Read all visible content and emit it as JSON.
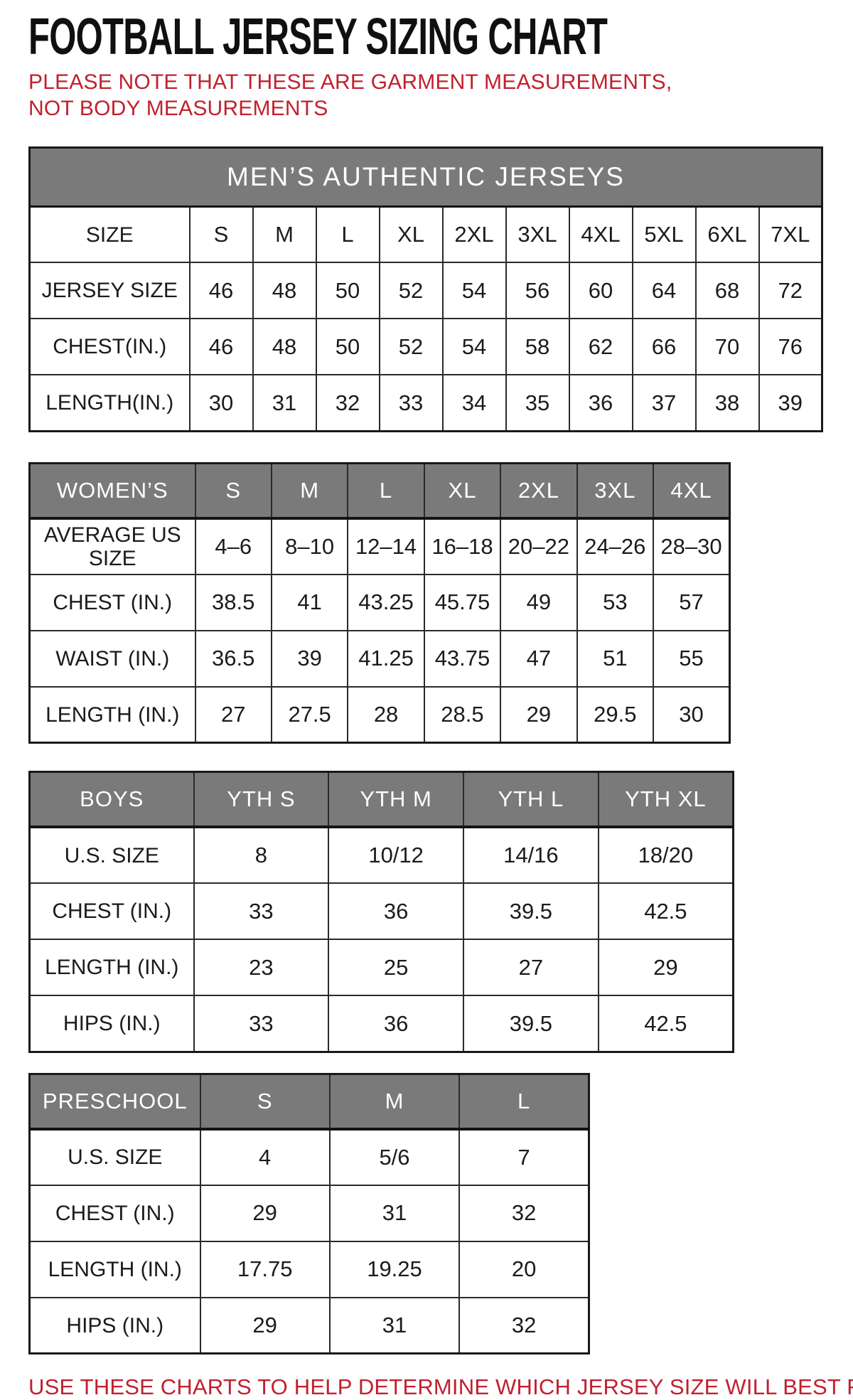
{
  "page": {
    "title": "FOOTBALL JERSEY SIZING CHART",
    "note": "PLEASE NOTE THAT THESE ARE GARMENT MEASUREMENTS, NOT BODY MEASUREMENTS",
    "footer": "USE THESE CHARTS TO HELP DETERMINE WHICH JERSEY SIZE WILL BEST FIT YOU.",
    "colors": {
      "accent_red": "#c1202e",
      "header_gray": "#7a7a7a",
      "border_black": "#191919"
    }
  },
  "tables": [
    {
      "id": "mens",
      "banner": "MEN’S AUTHENTIC JERSEYS",
      "rows": [
        {
          "label": "SIZE",
          "values": [
            "S",
            "M",
            "L",
            "XL",
            "2XL",
            "3XL",
            "4XL",
            "5XL",
            "6XL",
            "7XL"
          ]
        },
        {
          "label": "JERSEY SIZE",
          "values": [
            "46",
            "48",
            "50",
            "52",
            "54",
            "56",
            "60",
            "64",
            "68",
            "72"
          ]
        },
        {
          "label": "CHEST(IN.)",
          "values": [
            "46",
            "48",
            "50",
            "52",
            "54",
            "58",
            "62",
            "66",
            "70",
            "76"
          ]
        },
        {
          "label": "LENGTH(IN.)",
          "values": [
            "30",
            "31",
            "32",
            "33",
            "34",
            "35",
            "36",
            "37",
            "38",
            "39"
          ]
        }
      ]
    },
    {
      "id": "womens",
      "head": {
        "label": "WOMEN’S",
        "columns": [
          "S",
          "M",
          "L",
          "XL",
          "2XL",
          "3XL",
          "4XL"
        ]
      },
      "rows": [
        {
          "label": "AVERAGE US SIZE",
          "values": [
            "4–6",
            "8–10",
            "12–14",
            "16–18",
            "20–22",
            "24–26",
            "28–30"
          ]
        },
        {
          "label": "CHEST (IN.)",
          "values": [
            "38.5",
            "41",
            "43.25",
            "45.75",
            "49",
            "53",
            "57"
          ]
        },
        {
          "label": "WAIST (IN.)",
          "values": [
            "36.5",
            "39",
            "41.25",
            "43.75",
            "47",
            "51",
            "55"
          ]
        },
        {
          "label": "LENGTH (IN.)",
          "values": [
            "27",
            "27.5",
            "28",
            "28.5",
            "29",
            "29.5",
            "30"
          ]
        }
      ]
    },
    {
      "id": "boys",
      "head": {
        "label": "BOYS",
        "columns": [
          "YTH S",
          "YTH M",
          "YTH L",
          "YTH XL"
        ]
      },
      "rows": [
        {
          "label": "U.S. SIZE",
          "values": [
            "8",
            "10/12",
            "14/16",
            "18/20"
          ]
        },
        {
          "label": "CHEST (IN.)",
          "values": [
            "33",
            "36",
            "39.5",
            "42.5"
          ]
        },
        {
          "label": "LENGTH (IN.)",
          "values": [
            "23",
            "25",
            "27",
            "29"
          ]
        },
        {
          "label": "HIPS (IN.)",
          "values": [
            "33",
            "36",
            "39.5",
            "42.5"
          ]
        }
      ]
    },
    {
      "id": "preschool",
      "head": {
        "label": "PRESCHOOL",
        "columns": [
          "S",
          "M",
          "L"
        ]
      },
      "rows": [
        {
          "label": "U.S. SIZE",
          "values": [
            "4",
            "5/6",
            "7"
          ]
        },
        {
          "label": "CHEST (IN.)",
          "values": [
            "29",
            "31",
            "32"
          ]
        },
        {
          "label": "LENGTH (IN.)",
          "values": [
            "17.75",
            "19.25",
            "20"
          ]
        },
        {
          "label": "HIPS (IN.)",
          "values": [
            "29",
            "31",
            "32"
          ]
        }
      ]
    }
  ]
}
